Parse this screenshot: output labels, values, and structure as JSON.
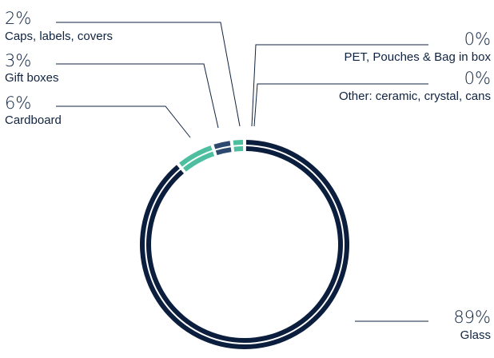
{
  "chart_data": {
    "type": "pie",
    "variant": "donut",
    "legend": "none",
    "slices": [
      {
        "label": "Glass",
        "value": 89,
        "value_label": "89%",
        "color": "#0b1e3d"
      },
      {
        "label": "Cardboard",
        "value": 6,
        "value_label": "6%",
        "color": "#4dbfa0"
      },
      {
        "label": "Gift boxes",
        "value": 3,
        "value_label": "3%",
        "color": "#2d4a6e"
      },
      {
        "label": "Caps, labels, covers",
        "value": 2,
        "value_label": "2%",
        "color": "#4dbfa0"
      },
      {
        "label": "PET, Pouches & Bag in box",
        "value": 0,
        "value_label": "0%",
        "color": "#4dbfa0"
      },
      {
        "label": "Other: ceramic, crystal, cans",
        "value": 0,
        "value_label": "0%",
        "color": "#4dbfa0"
      }
    ]
  }
}
